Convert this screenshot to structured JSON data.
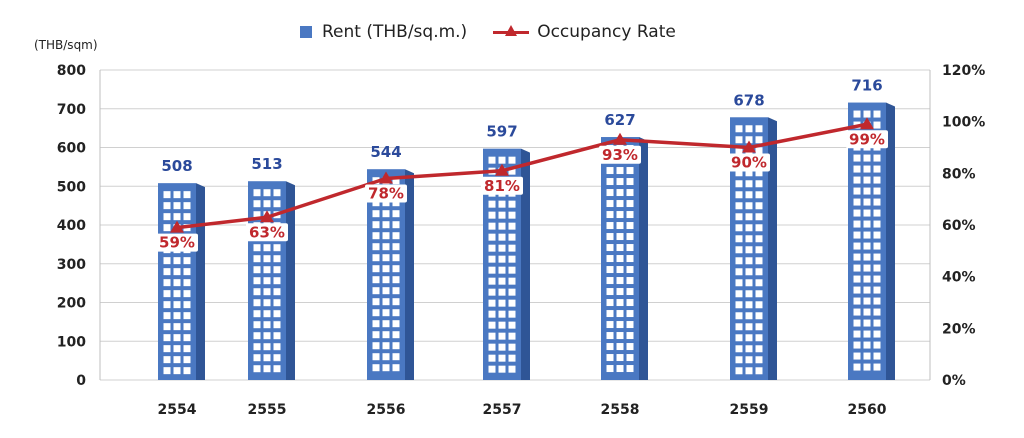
{
  "legend": {
    "rent": "Rent (THB/sq.m.)",
    "occupancy": "Occupancy Rate"
  },
  "y_unit": "(THB/sqm)",
  "colors": {
    "bar": "#4a78c2",
    "bar_side": "#2f5596",
    "line": "#c0282d",
    "value_label": "#2b4a9b",
    "pct_label": "#c0282d"
  },
  "chart_data": {
    "type": "bar",
    "categories": [
      "2554",
      "2555",
      "2556",
      "2557",
      "2558",
      "2559",
      "2560"
    ],
    "series": [
      {
        "name": "Rent (THB/sq.m.)",
        "type": "bar",
        "axis": "left",
        "values": [
          508,
          513,
          544,
          597,
          627,
          678,
          716
        ],
        "labels": [
          "508",
          "513",
          "544",
          "597",
          "627",
          "678",
          "716"
        ]
      },
      {
        "name": "Occupancy Rate",
        "type": "line",
        "axis": "right",
        "values": [
          59,
          63,
          78,
          81,
          93,
          90,
          99
        ],
        "labels": [
          "59%",
          "63%",
          "78%",
          "81%",
          "93%",
          "90%",
          "99%"
        ]
      }
    ],
    "ylabel": "(THB/sqm)",
    "ylim": [
      0,
      800
    ],
    "y_ticks": [
      "0",
      "100",
      "200",
      "300",
      "400",
      "500",
      "600",
      "700",
      "800"
    ],
    "y2lim": [
      0,
      120
    ],
    "y2_ticks": [
      "0%",
      "20%",
      "40%",
      "60%",
      "80%",
      "100%",
      "120%"
    ],
    "grid": true,
    "legend_position": "top"
  }
}
